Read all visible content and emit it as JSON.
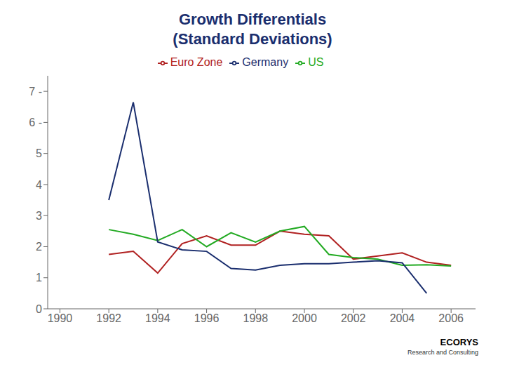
{
  "chart_data": {
    "type": "line",
    "title": "Growth Differentials",
    "subtitle": "(Standard Deviations)",
    "x": [
      1990,
      1991,
      1992,
      1993,
      1994,
      1995,
      1996,
      1997,
      1998,
      1999,
      2000,
      2001,
      2002,
      2003,
      2004,
      2005,
      2006
    ],
    "series": [
      {
        "name": "Euro Zone",
        "color": "#b02020",
        "values": [
          null,
          null,
          1.75,
          1.85,
          1.15,
          2.1,
          2.35,
          2.05,
          2.05,
          2.5,
          2.4,
          2.35,
          1.6,
          1.7,
          1.8,
          1.5,
          1.4
        ]
      },
      {
        "name": "US",
        "color": "#22aa22",
        "values": [
          null,
          null,
          2.55,
          2.4,
          2.2,
          2.55,
          2.0,
          2.45,
          2.15,
          2.5,
          2.65,
          1.75,
          1.65,
          1.6,
          1.4,
          1.42,
          1.38
        ]
      },
      {
        "name": "Germany",
        "color": "#1a2e6e",
        "values": [
          null,
          null,
          3.5,
          6.65,
          2.15,
          1.9,
          1.85,
          1.3,
          1.25,
          1.4,
          1.45,
          1.45,
          1.5,
          1.55,
          1.48,
          0.5,
          null
        ]
      }
    ],
    "xlim": [
      1989.5,
      2007
    ],
    "xticks": [
      1990,
      1992,
      1994,
      1996,
      1998,
      2000,
      2002,
      2004,
      2006
    ],
    "ylim": [
      0,
      7.5
    ],
    "yticks": [
      0,
      1,
      2,
      3,
      4,
      5,
      {
        "value": 6,
        "label": "6 -"
      },
      {
        "value": 7,
        "label": "7 -"
      }
    ],
    "grid": false,
    "legend": "top",
    "annotations": [
      "ECORYS",
      "Research and Consulting"
    ]
  }
}
